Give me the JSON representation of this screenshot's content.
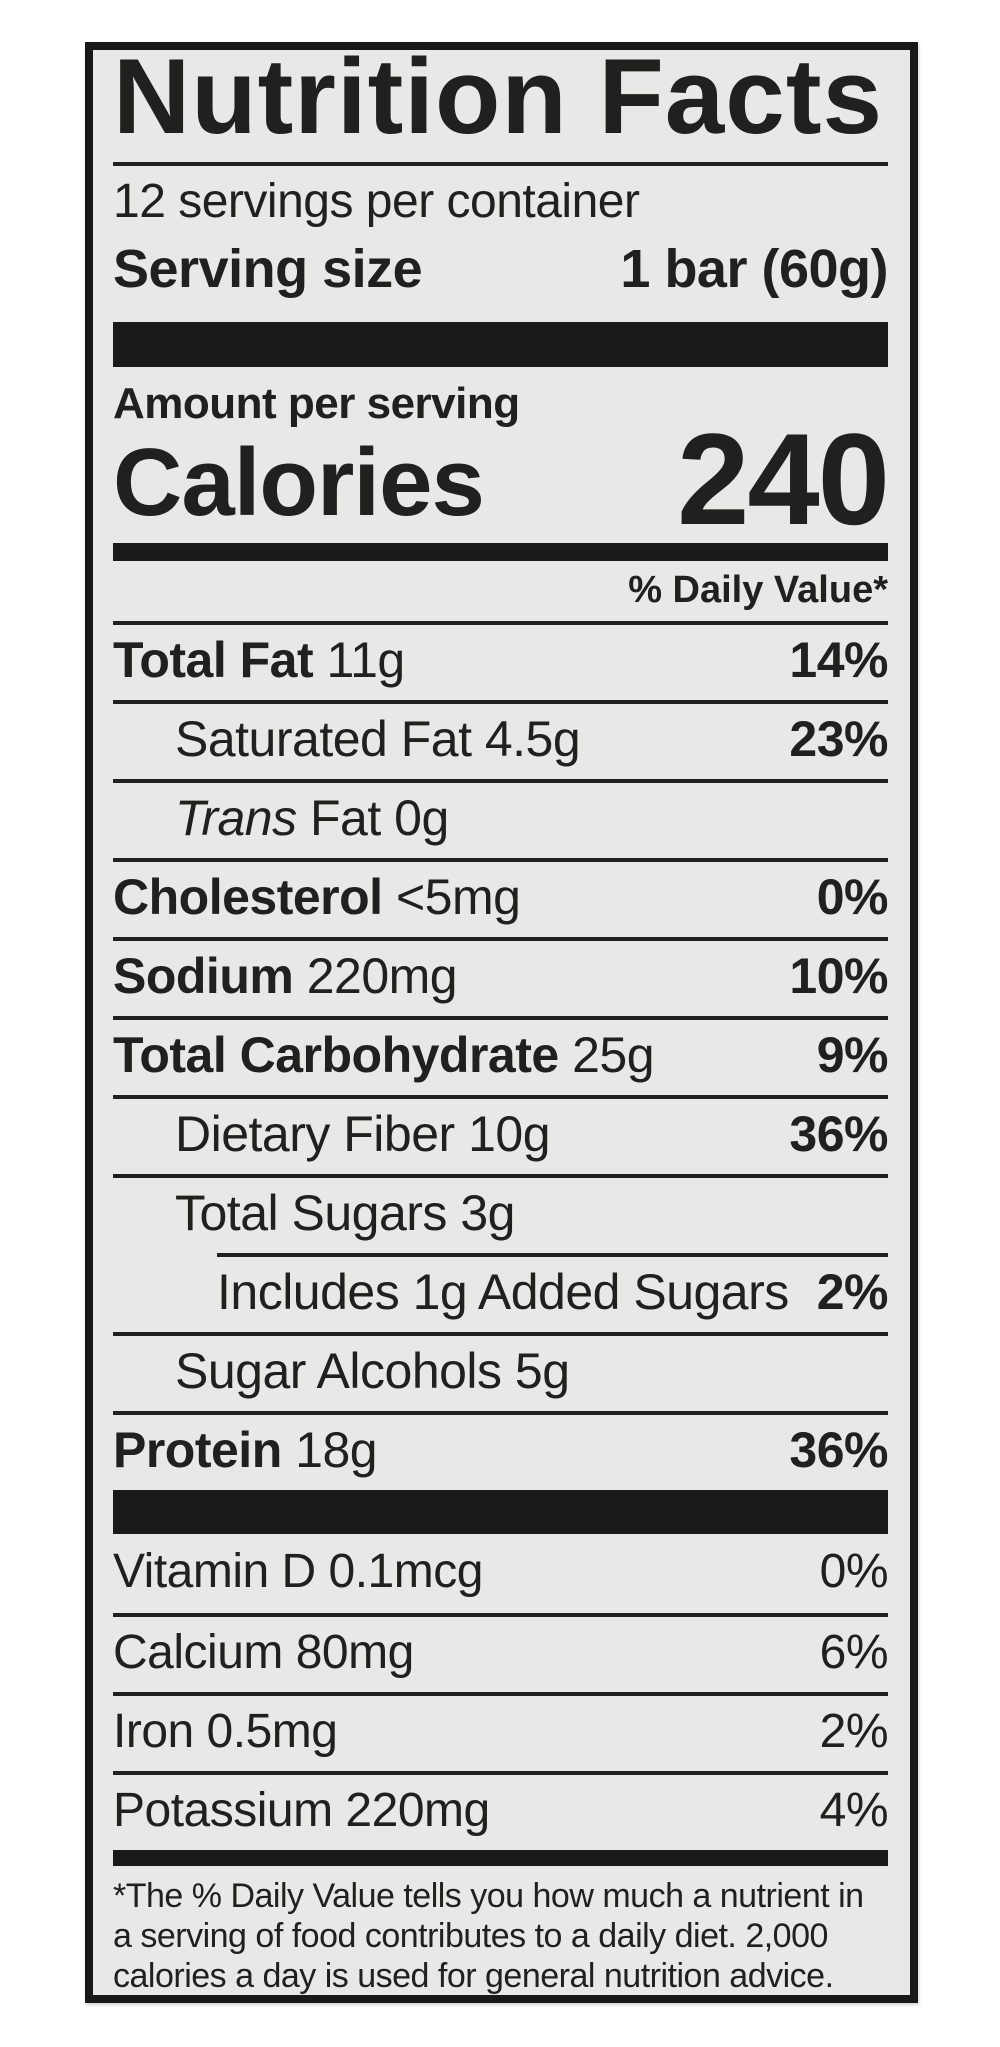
{
  "colors": {
    "page_background": "#ffffff",
    "label_background": "#e9e8e6",
    "ink": "#21201e",
    "bar": "#1b1a18"
  },
  "header": {
    "title": "Nutrition Facts",
    "servings_per_container": "12 servings per container",
    "serving_size_label": "Serving size",
    "serving_size_value": "1 bar (60g)"
  },
  "calories": {
    "section_label": "Amount per serving",
    "label": "Calories",
    "value": "240"
  },
  "daily_value_header": "% Daily Value*",
  "rows": [
    {
      "bold": "Total Fat",
      "rest": " 11g",
      "pct": "14%"
    },
    {
      "bold": "",
      "rest": "Saturated Fat 4.5g",
      "pct": "23%"
    },
    {
      "bold": "",
      "italic": "Trans",
      "rest": " Fat 0g",
      "pct": ""
    },
    {
      "bold": "Cholesterol",
      "rest": " <5mg",
      "pct": "0%"
    },
    {
      "bold": "Sodium",
      "rest": " 220mg",
      "pct": "10%"
    },
    {
      "bold": "Total Carbohydrate",
      "rest": " 25g",
      "pct": "9%"
    },
    {
      "bold": "",
      "rest": "Dietary Fiber 10g",
      "pct": "36%"
    },
    {
      "bold": "",
      "rest": "Total Sugars 3g",
      "pct": ""
    },
    {
      "bold": "",
      "rest": "Includes 1g Added Sugars",
      "pct": "2%"
    },
    {
      "bold": "",
      "rest": "Sugar Alcohols 5g",
      "pct": ""
    },
    {
      "bold": "Protein",
      "rest": " 18g",
      "pct": "36%"
    }
  ],
  "vitamins": [
    {
      "text": "Vitamin D 0.1mcg",
      "pct": "0%"
    },
    {
      "text": "Calcium 80mg",
      "pct": "6%"
    },
    {
      "text": "Iron 0.5mg",
      "pct": "2%"
    },
    {
      "text": "Potassium 220mg",
      "pct": "4%"
    }
  ],
  "footnote": {
    "line1": "*The % Daily Value tells you how much a nutrient in",
    "line2": "a serving of food contributes to a daily diet. 2,000",
    "line3": "calories a day is used for general nutrition advice."
  }
}
